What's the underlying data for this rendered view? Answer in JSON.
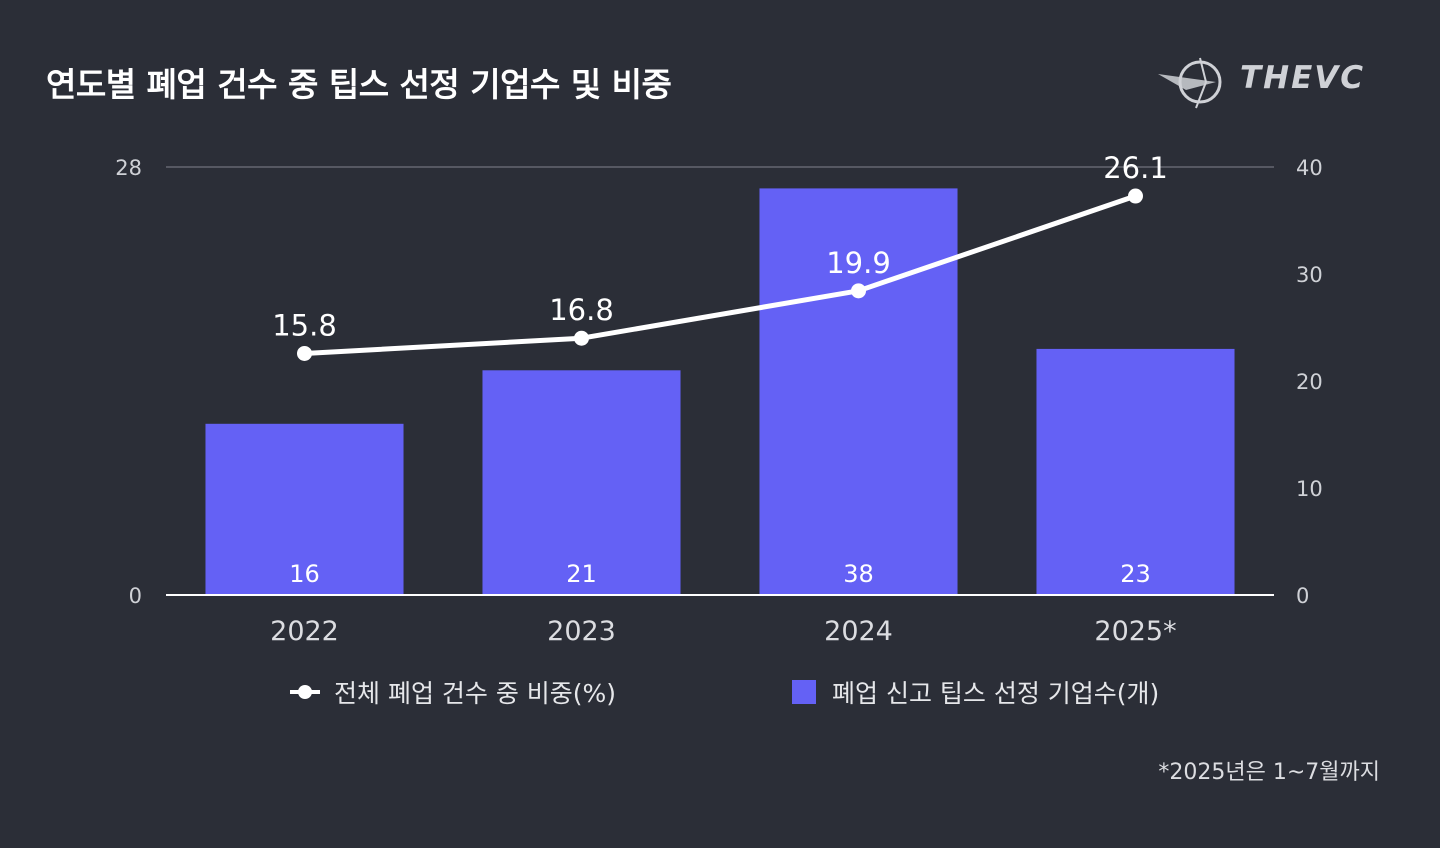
{
  "header": {
    "title": "연도별 폐업 건수 중 팁스 선정 기업수 및 비중",
    "logo_text": "THEVC"
  },
  "colors": {
    "background": "#2b2e37",
    "bar": "#6461f5",
    "line": "#ffffff",
    "text": "#ffffff",
    "muted": "#cfd1d6"
  },
  "chart_data": {
    "type": "bar",
    "categories": [
      "2022",
      "2023",
      "2024",
      "2025*"
    ],
    "series": [
      {
        "name": "폐업 신고 팁스 선정 기업수(개)",
        "kind": "bar",
        "axis": "right",
        "values": [
          16,
          21,
          38,
          23
        ],
        "labels": [
          "16",
          "21",
          "38",
          "23"
        ]
      },
      {
        "name": "전체 폐업 건수 중 비중(%)",
        "kind": "line",
        "axis": "left",
        "values": [
          15.8,
          16.8,
          19.9,
          26.1
        ],
        "labels": [
          "15.8",
          "16.8",
          "19.9",
          "26.1"
        ]
      }
    ],
    "y_left": {
      "ylim": [
        0,
        28
      ],
      "ticks": [
        "0",
        "28"
      ]
    },
    "y_right": {
      "ylim": [
        0,
        40
      ],
      "ticks": [
        "0",
        "10",
        "20",
        "30",
        "40"
      ]
    },
    "legend_position": "bottom",
    "footnote": "*2025년은 1~7월까지"
  }
}
